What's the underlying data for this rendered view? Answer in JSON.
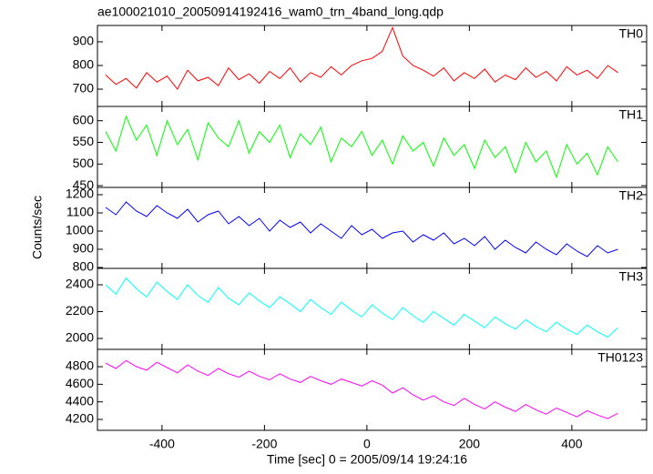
{
  "chart_data": [
    {
      "type": "line",
      "title": "ae100021010_20050914192416_wam0_trn_4band_long.qdp",
      "ylabel": "Counts/sec",
      "x": [
        -510,
        -490,
        -470,
        -450,
        -430,
        -410,
        -390,
        -370,
        -350,
        -330,
        -310,
        -290,
        -270,
        -250,
        -230,
        -210,
        -190,
        -170,
        -150,
        -130,
        -110,
        -90,
        -70,
        -50,
        -30,
        -10,
        10,
        30,
        50,
        70,
        90,
        110,
        130,
        150,
        170,
        190,
        210,
        230,
        250,
        270,
        290,
        310,
        330,
        350,
        370,
        390,
        410,
        430,
        450,
        470,
        490
      ],
      "xlim": [
        -526,
        546
      ],
      "ylim": [
        627,
        969
      ],
      "yticks": [
        700,
        800,
        900
      ],
      "series": [
        {
          "name": "TH0",
          "color": "#ff0000",
          "values": [
            760,
            720,
            745,
            705,
            770,
            730,
            755,
            700,
            780,
            735,
            750,
            715,
            790,
            740,
            765,
            725,
            775,
            745,
            790,
            730,
            770,
            750,
            795,
            760,
            800,
            820,
            830,
            860,
            960,
            840,
            800,
            780,
            755,
            790,
            735,
            770,
            745,
            785,
            730,
            760,
            740,
            790,
            750,
            775,
            735,
            795,
            760,
            780,
            745,
            800,
            770
          ]
        }
      ]
    },
    {
      "type": "line",
      "x": [
        -510,
        -490,
        -470,
        -450,
        -430,
        -410,
        -390,
        -370,
        -350,
        -330,
        -310,
        -290,
        -270,
        -250,
        -230,
        -210,
        -190,
        -170,
        -150,
        -130,
        -110,
        -90,
        -70,
        -50,
        -30,
        -10,
        10,
        30,
        50,
        70,
        90,
        110,
        130,
        150,
        170,
        190,
        210,
        230,
        250,
        270,
        290,
        310,
        330,
        350,
        370,
        390,
        410,
        430,
        450,
        470,
        490
      ],
      "xlim": [
        -526,
        546
      ],
      "ylim": [
        446,
        633
      ],
      "yticks": [
        450,
        500,
        550,
        600
      ],
      "series": [
        {
          "name": "TH1",
          "color": "#00ff00",
          "values": [
            575,
            530,
            610,
            555,
            590,
            520,
            600,
            545,
            580,
            510,
            595,
            560,
            540,
            600,
            525,
            575,
            550,
            590,
            515,
            570,
            545,
            585,
            505,
            560,
            540,
            575,
            520,
            555,
            500,
            565,
            530,
            550,
            495,
            560,
            520,
            545,
            490,
            555,
            515,
            540,
            480,
            550,
            505,
            530,
            470,
            545,
            500,
            525,
            475,
            540,
            505
          ]
        }
      ]
    },
    {
      "type": "line",
      "x": [
        -510,
        -490,
        -470,
        -450,
        -430,
        -410,
        -390,
        -370,
        -350,
        -330,
        -310,
        -290,
        -270,
        -250,
        -230,
        -210,
        -190,
        -170,
        -150,
        -130,
        -110,
        -90,
        -70,
        -50,
        -30,
        -10,
        10,
        30,
        50,
        70,
        90,
        110,
        130,
        150,
        170,
        190,
        210,
        230,
        250,
        270,
        290,
        310,
        330,
        350,
        370,
        390,
        410,
        430,
        450,
        470,
        490
      ],
      "xlim": [
        -526,
        546
      ],
      "ylim": [
        795,
        1240
      ],
      "yticks": [
        800,
        900,
        1000,
        1100,
        1200
      ],
      "series": [
        {
          "name": "TH2",
          "color": "#0000ff",
          "values": [
            1130,
            1090,
            1160,
            1110,
            1080,
            1140,
            1100,
            1070,
            1120,
            1050,
            1090,
            1110,
            1040,
            1080,
            1030,
            1070,
            1000,
            1060,
            1020,
            1050,
            990,
            1040,
            1000,
            960,
            1030,
            980,
            1010,
            960,
            990,
            1000,
            940,
            980,
            950,
            990,
            930,
            960,
            920,
            970,
            900,
            950,
            910,
            880,
            940,
            900,
            870,
            930,
            890,
            860,
            920,
            880,
            900
          ]
        }
      ]
    },
    {
      "type": "line",
      "x": [
        -510,
        -490,
        -470,
        -450,
        -430,
        -410,
        -390,
        -370,
        -350,
        -330,
        -310,
        -290,
        -270,
        -250,
        -230,
        -210,
        -190,
        -170,
        -150,
        -130,
        -110,
        -90,
        -70,
        -50,
        -30,
        -10,
        10,
        30,
        50,
        70,
        90,
        110,
        130,
        150,
        170,
        190,
        210,
        230,
        250,
        270,
        290,
        310,
        330,
        350,
        370,
        390,
        410,
        430,
        450,
        470,
        490
      ],
      "xlim": [
        -526,
        546
      ],
      "ylim": [
        1919,
        2522
      ],
      "yticks": [
        2000,
        2200,
        2400
      ],
      "series": [
        {
          "name": "TH3",
          "color": "#00ffff",
          "values": [
            2400,
            2330,
            2450,
            2370,
            2310,
            2420,
            2350,
            2290,
            2400,
            2320,
            2270,
            2380,
            2300,
            2250,
            2340,
            2280,
            2230,
            2310,
            2260,
            2200,
            2290,
            2230,
            2180,
            2270,
            2210,
            2160,
            2250,
            2190,
            2140,
            2230,
            2170,
            2120,
            2200,
            2150,
            2100,
            2180,
            2130,
            2080,
            2160,
            2110,
            2070,
            2140,
            2090,
            2050,
            2120,
            2070,
            2030,
            2100,
            2050,
            2010,
            2080
          ]
        }
      ]
    },
    {
      "type": "line",
      "xlabel": "Time [sec] 0 = 2005/09/14 19:24:16",
      "x": [
        -510,
        -490,
        -470,
        -450,
        -430,
        -410,
        -390,
        -370,
        -350,
        -330,
        -310,
        -290,
        -270,
        -250,
        -230,
        -210,
        -190,
        -170,
        -150,
        -130,
        -110,
        -90,
        -70,
        -50,
        -30,
        -10,
        10,
        30,
        50,
        70,
        90,
        110,
        130,
        150,
        170,
        190,
        210,
        230,
        250,
        270,
        290,
        310,
        330,
        350,
        370,
        390,
        410,
        430,
        450,
        470,
        490
      ],
      "xlim": [
        -526,
        546
      ],
      "xticks": [
        -400,
        -200,
        0,
        200,
        400
      ],
      "ylim": [
        4076,
        4997
      ],
      "yticks": [
        4200,
        4400,
        4600,
        4800
      ],
      "series": [
        {
          "name": "TH0123",
          "color": "#ff00ff",
          "values": [
            4840,
            4780,
            4870,
            4800,
            4760,
            4850,
            4790,
            4730,
            4820,
            4750,
            4700,
            4780,
            4720,
            4680,
            4750,
            4690,
            4650,
            4720,
            4660,
            4620,
            4690,
            4640,
            4600,
            4660,
            4620,
            4580,
            4640,
            4590,
            4500,
            4560,
            4480,
            4420,
            4470,
            4400,
            4360,
            4440,
            4370,
            4320,
            4400,
            4340,
            4290,
            4370,
            4310,
            4260,
            4330,
            4280,
            4230,
            4300,
            4250,
            4210,
            4270
          ]
        }
      ]
    }
  ]
}
